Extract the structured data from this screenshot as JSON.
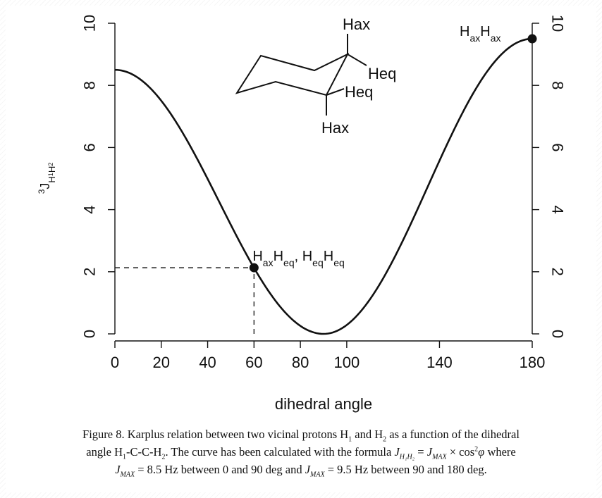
{
  "chart_data": {
    "type": "line",
    "xlabel": "dihedral angle",
    "ylabel_prefix": "3",
    "ylabel_main": "J",
    "ylabel_sub": "H",
    "ylabel_sub_index_1": "1",
    "ylabel_sub_2": "H",
    "ylabel_sub_index_2": "2",
    "xlim": [
      0,
      180
    ],
    "ylim": [
      0,
      10
    ],
    "x_ticks": [
      0,
      20,
      40,
      60,
      80,
      100,
      140,
      180
    ],
    "y_ticks_left": [
      0,
      2,
      4,
      6,
      8,
      10
    ],
    "y_ticks_right": [
      0,
      2,
      4,
      6,
      8,
      10
    ],
    "grid": false,
    "legend": "none",
    "series": [
      {
        "formula": "J = Jmax * cos^2(phi)",
        "jmax_0_to_90": 8.5,
        "jmax_90_to_180": 9.5,
        "x": [
          0,
          10,
          20,
          30,
          40,
          50,
          60,
          70,
          80,
          90,
          100,
          110,
          120,
          130,
          140,
          150,
          160,
          170,
          180
        ],
        "y": [
          8.5,
          8.24,
          7.51,
          6.38,
          4.99,
          3.51,
          2.13,
          0.99,
          0.26,
          0.0,
          0.29,
          1.11,
          2.38,
          3.93,
          5.58,
          7.13,
          8.39,
          9.21,
          9.5
        ]
      }
    ],
    "points": [
      {
        "x": 60,
        "y": 2.13,
        "label_parts": [
          [
            "H",
            ""
          ],
          [
            "ax",
            "sub"
          ],
          [
            "H",
            ""
          ],
          [
            "eq",
            "sub"
          ],
          [
            ", H",
            ""
          ],
          [
            "eq",
            "sub"
          ],
          [
            "H",
            ""
          ],
          [
            "eq",
            "sub"
          ]
        ]
      },
      {
        "x": 180,
        "y": 9.5,
        "label_parts": [
          [
            "H",
            ""
          ],
          [
            "ax",
            "sub"
          ],
          [
            "H",
            ""
          ],
          [
            "ax",
            "sub"
          ]
        ]
      }
    ],
    "reference_lines": [
      {
        "orientation": "vertical",
        "x": 60,
        "y_from": 0,
        "y_to": 2.13,
        "style": "dashed"
      },
      {
        "orientation": "horizontal",
        "y": 2.13,
        "x_from": 0,
        "x_to": 60,
        "style": "dashed"
      }
    ],
    "molecule_labels": {
      "top_hax": "Hax",
      "upper_heq": "Heq",
      "lower_heq": "Heq",
      "bottom_hax": "Hax"
    }
  },
  "caption": {
    "line1": {
      "t1": "Figure 8. Karplus relation between two vicinal protons H",
      "s1": "1",
      "t2": " and H",
      "s2": "2",
      "t3": " as a function of the dihedral"
    },
    "line2": {
      "t1": "angle H",
      "s1": "1",
      "t2": "-C-C-H",
      "s2": "2",
      "t3": ". The curve has been calculated with the formula ",
      "j1": "J",
      "j1_sub": "H₁H₂",
      "eq": " = ",
      "j2": "J",
      "j2_sub": "MAX",
      "times": " × cos",
      "sup2": "2",
      "phi": "φ",
      "t4": " where"
    },
    "line3": {
      "j1": "J",
      "j1_sub": "MAX",
      "t1": " = 8.5 Hz between 0 and 90 deg and ",
      "j2": "J",
      "j2_sub": "MAX",
      "t2": " = 9.5 Hz between 90 and 180 deg."
    }
  }
}
